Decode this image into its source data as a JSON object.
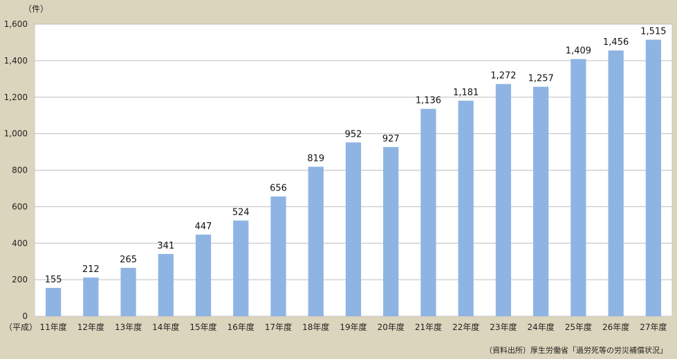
{
  "chart_data": {
    "type": "bar",
    "unit": "（件）",
    "era_prefix": "（平成）",
    "categories": [
      "11年度",
      "12年度",
      "13年度",
      "14年度",
      "15年度",
      "16年度",
      "17年度",
      "18年度",
      "19年度",
      "20年度",
      "21年度",
      "22年度",
      "23年度",
      "24年度",
      "25年度",
      "26年度",
      "27年度"
    ],
    "values": [
      155,
      212,
      265,
      341,
      447,
      524,
      656,
      819,
      952,
      927,
      1136,
      1181,
      1272,
      1257,
      1409,
      1456,
      1515
    ],
    "value_labels": [
      "155",
      "212",
      "265",
      "341",
      "447",
      "524",
      "656",
      "819",
      "952",
      "927",
      "1,136",
      "1,181",
      "1,272",
      "1,257",
      "1,409",
      "1,456",
      "1,515"
    ],
    "ylim": [
      0,
      1600
    ],
    "yticks": [
      0,
      200,
      400,
      600,
      800,
      1000,
      1200,
      1400,
      1600
    ],
    "ytick_labels": [
      "0",
      "200",
      "400",
      "600",
      "800",
      "1,000",
      "1,200",
      "1,400",
      "1,600"
    ],
    "grid": true,
    "bar_color": "#8eb4e3",
    "plot_background": "#ffffff",
    "page_background": "#dcd5bd",
    "source": "（資料出所）厚生労働省「過労死等の労災補償状況」"
  }
}
